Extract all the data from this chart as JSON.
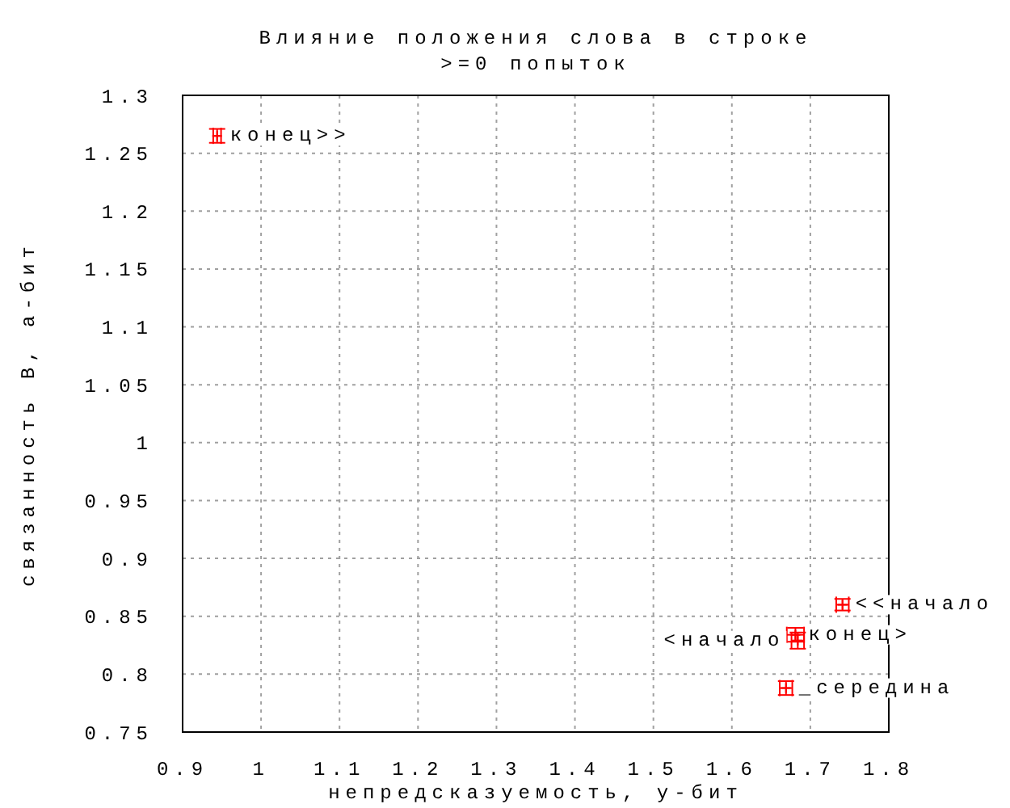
{
  "chart_data": {
    "type": "scatter",
    "title": "Влияние положения слова в строке",
    "subtitle": ">=0 попыток",
    "xlabel": "непредсказуемость, у-бит",
    "ylabel": "связанность В, а-бит",
    "x": [
      0.944,
      1.741,
      1.681,
      1.684,
      1.669
    ],
    "values": [
      1.265,
      0.86,
      0.834,
      0.829,
      0.788
    ],
    "color": "#ff0000",
    "errors": [
      0.006,
      0.005,
      0.006,
      0.007,
      0.006
    ],
    "xerrors": [
      0.005,
      0.008,
      0.011,
      0.008,
      0.008
    ],
    "annotations": [
      {
        "text": "конец>>",
        "x": 0.944,
        "y": 1.265
      },
      {
        "text": "<<начало",
        "x": 1.741,
        "y": 0.86
      },
      {
        "text": "конец>",
        "x": 1.681,
        "y": 0.834
      },
      {
        "text": "<начало",
        "x": 1.684,
        "y": 0.829
      },
      {
        "text": "_середина",
        "x": 1.669,
        "y": 0.788
      }
    ],
    "xlim": [
      0.9,
      1.8
    ],
    "xticks": [
      0.9,
      1,
      1.1,
      1.2,
      1.3,
      1.4,
      1.5,
      1.6,
      1.7,
      1.8
    ],
    "ylim": [
      0.75,
      1.3
    ],
    "yticks": [
      0.75,
      0.8,
      0.85,
      0.9,
      0.95,
      1,
      1.05,
      1.1,
      1.15,
      1.2,
      1.25,
      1.3
    ],
    "grid": true,
    "marker": "cross"
  }
}
